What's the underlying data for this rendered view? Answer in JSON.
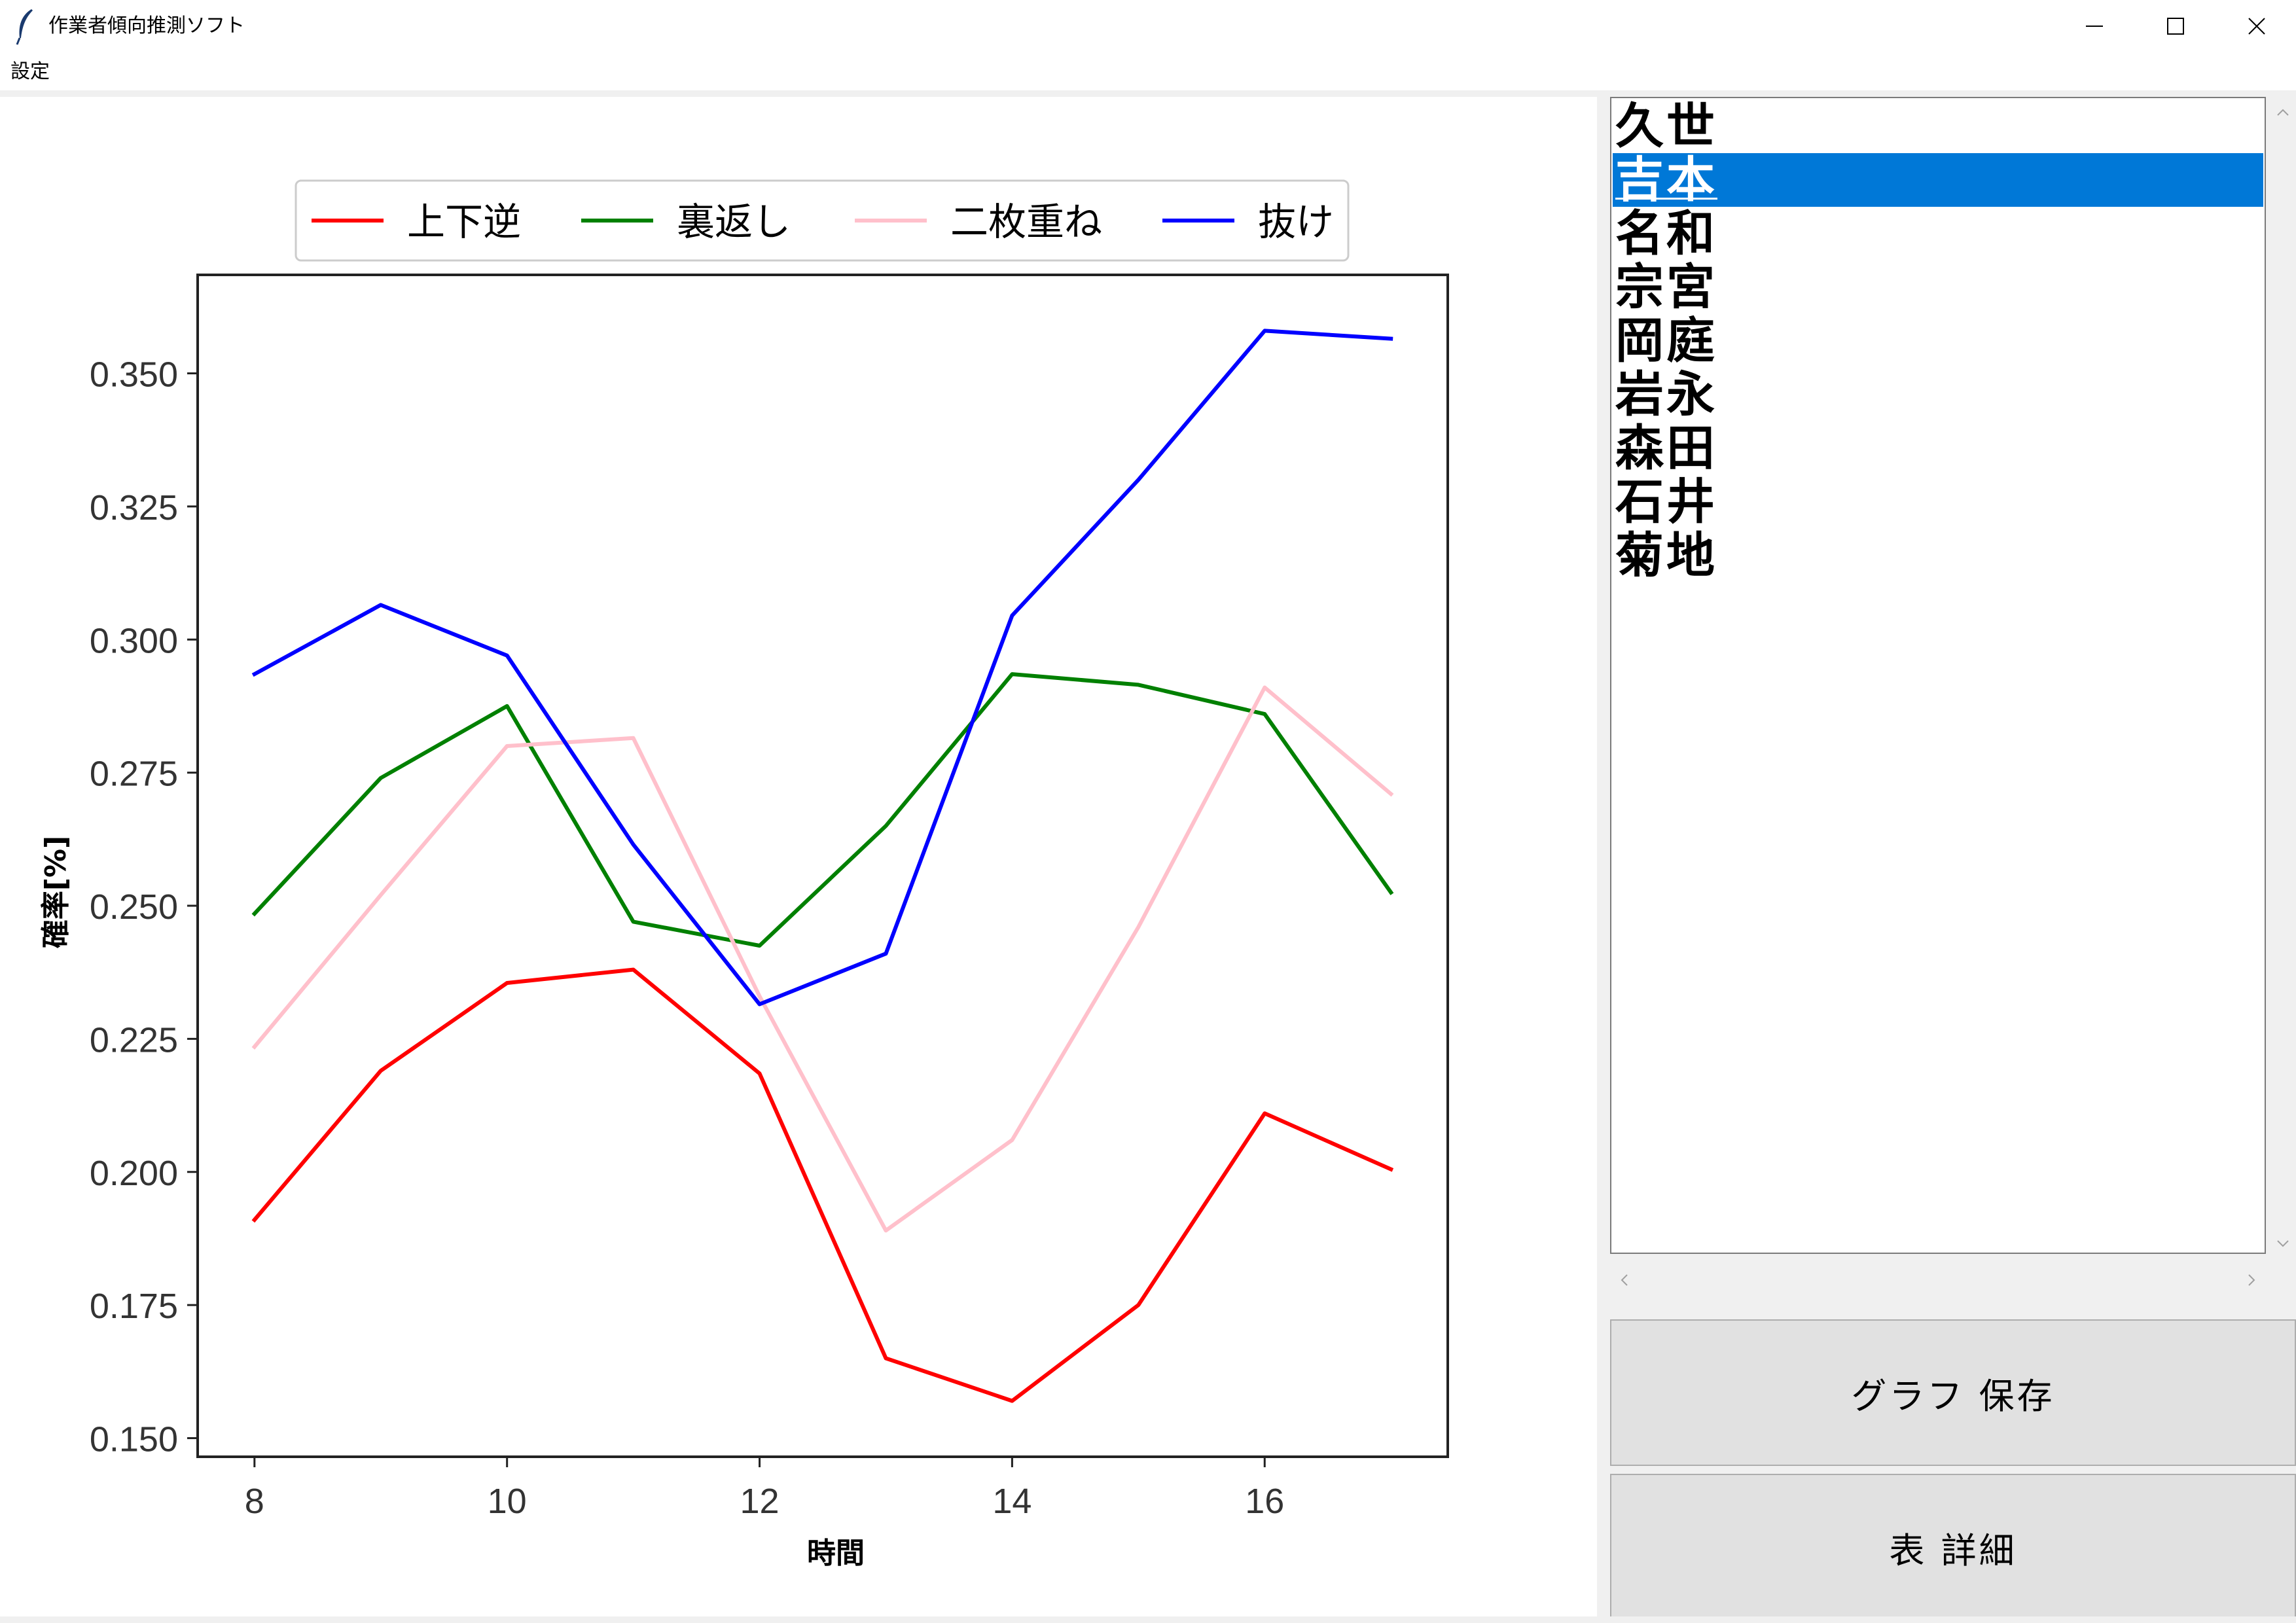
{
  "window": {
    "title": "作業者傾向推測ソフト",
    "icon": "feather-icon",
    "controls": [
      "minimize-icon",
      "maximize-icon",
      "close-icon"
    ]
  },
  "menu": {
    "items": [
      "設定"
    ]
  },
  "worker_list": {
    "items": [
      "久世",
      "吉本",
      "名和",
      "宗宮",
      "岡庭",
      "岩永",
      "森田",
      "石井",
      "菊地"
    ],
    "selected_index": 1,
    "selected_color": "#0078d7"
  },
  "buttons": {
    "save_graph": "グラフ 保存",
    "table_detail": "表 詳細"
  },
  "chart_data": {
    "type": "line",
    "title": "",
    "xlabel": "時間",
    "ylabel": "確率[%]",
    "x": [
      8,
      9,
      10,
      11,
      12,
      13,
      14,
      15,
      16,
      17
    ],
    "xlim": [
      7.55,
      17.45
    ],
    "ylim": [
      0.1465,
      0.3685
    ],
    "xticks": [
      "8",
      "10",
      "12",
      "14",
      "16"
    ],
    "xtick_values": [
      8,
      10,
      12,
      14,
      16
    ],
    "yticks": [
      "0.150",
      "0.175",
      "0.200",
      "0.225",
      "0.250",
      "0.275",
      "0.300",
      "0.325",
      "0.350"
    ],
    "ytick_values": [
      0.15,
      0.175,
      0.2,
      0.225,
      0.25,
      0.275,
      0.3,
      0.325,
      0.35
    ],
    "grid": false,
    "legend_position": "top-center",
    "series": [
      {
        "name": "上下逆",
        "color": "#ff0000",
        "values": [
          0.191,
          0.219,
          0.2355,
          0.238,
          0.2185,
          0.165,
          0.157,
          0.175,
          0.211,
          0.2005
        ]
      },
      {
        "name": "裏返し",
        "color": "#008000",
        "values": [
          0.2485,
          0.274,
          0.2875,
          0.247,
          0.2425,
          0.265,
          0.2935,
          0.2915,
          0.286,
          0.2525
        ]
      },
      {
        "name": "二枚重ね",
        "color": "#ffc0cb",
        "values": [
          0.2235,
          0.252,
          0.28,
          0.2815,
          0.233,
          0.189,
          0.206,
          0.246,
          0.291,
          0.271
        ]
      },
      {
        "name": "抜け",
        "color": "#0000ff",
        "values": [
          0.2935,
          0.3065,
          0.297,
          0.2615,
          0.2315,
          0.241,
          0.3045,
          0.33,
          0.358,
          0.3565
        ]
      }
    ]
  }
}
